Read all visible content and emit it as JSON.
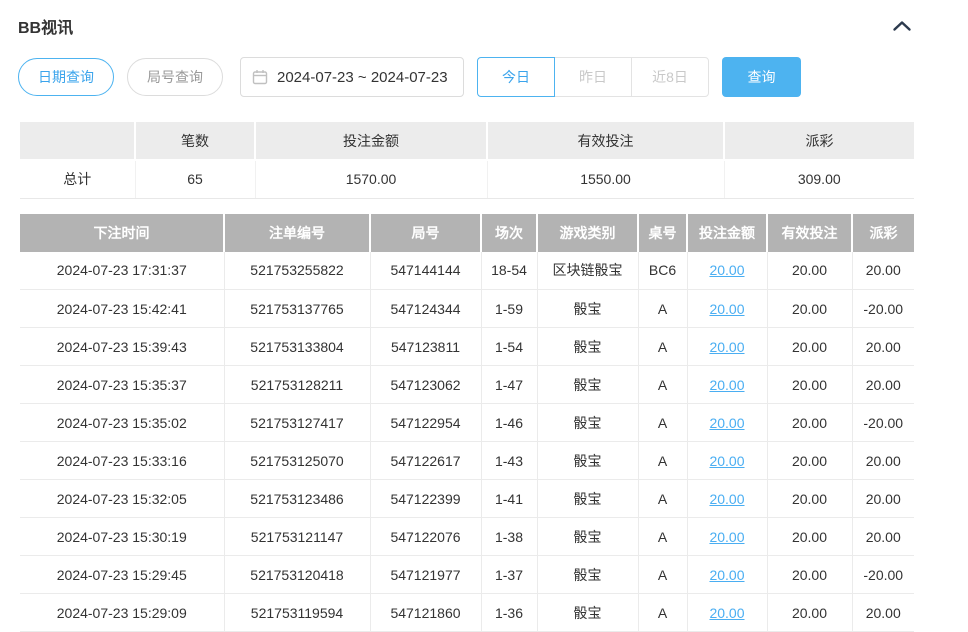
{
  "panel": {
    "title": "BB视讯",
    "collapse_icon": "chevron-up-icon"
  },
  "toolbar": {
    "date_query_label": "日期查询",
    "round_query_label": "局号查询",
    "calendar_icon": "calendar-icon",
    "date_range": "2024-07-23 ~ 2024-07-23",
    "today_label": "今日",
    "yesterday_label": "昨日",
    "last8_label": "近8日",
    "search_label": "查询"
  },
  "summary": {
    "headers": [
      "",
      "笔数",
      "投注金额",
      "有效投注",
      "派彩"
    ],
    "row_label": "总计",
    "count": "65",
    "bet_amount": "1570.00",
    "valid_bet": "1550.00",
    "payout": "309.00"
  },
  "table": {
    "headers": [
      "下注时间",
      "注单编号",
      "局号",
      "场次",
      "游戏类别",
      "桌号",
      "投注金额",
      "有效投注",
      "派彩"
    ],
    "header_keys": [
      "bet-time",
      "bet-id",
      "round-id",
      "session",
      "game-type",
      "table-id",
      "bet-amount",
      "valid-bet",
      "payout"
    ],
    "rows": [
      [
        "2024-07-23 17:31:37",
        "521753255822",
        "547144144",
        "18-54",
        "区块链骰宝",
        "BC6",
        "20.00",
        "20.00",
        "20.00"
      ],
      [
        "2024-07-23 15:42:41",
        "521753137765",
        "547124344",
        "1-59",
        "骰宝",
        "A",
        "20.00",
        "20.00",
        "-20.00"
      ],
      [
        "2024-07-23 15:39:43",
        "521753133804",
        "547123811",
        "1-54",
        "骰宝",
        "A",
        "20.00",
        "20.00",
        "20.00"
      ],
      [
        "2024-07-23 15:35:37",
        "521753128211",
        "547123062",
        "1-47",
        "骰宝",
        "A",
        "20.00",
        "20.00",
        "20.00"
      ],
      [
        "2024-07-23 15:35:02",
        "521753127417",
        "547122954",
        "1-46",
        "骰宝",
        "A",
        "20.00",
        "20.00",
        "-20.00"
      ],
      [
        "2024-07-23 15:33:16",
        "521753125070",
        "547122617",
        "1-43",
        "骰宝",
        "A",
        "20.00",
        "20.00",
        "20.00"
      ],
      [
        "2024-07-23 15:32:05",
        "521753123486",
        "547122399",
        "1-41",
        "骰宝",
        "A",
        "20.00",
        "20.00",
        "20.00"
      ],
      [
        "2024-07-23 15:30:19",
        "521753121147",
        "547122076",
        "1-38",
        "骰宝",
        "A",
        "20.00",
        "20.00",
        "20.00"
      ],
      [
        "2024-07-23 15:29:45",
        "521753120418",
        "547121977",
        "1-37",
        "骰宝",
        "A",
        "20.00",
        "20.00",
        "-20.00"
      ],
      [
        "2024-07-23 15:29:09",
        "521753119594",
        "547121860",
        "1-36",
        "骰宝",
        "A",
        "20.00",
        "20.00",
        "20.00"
      ]
    ]
  },
  "colors": {
    "accent": "#4db3f0",
    "link": "#4aaef2",
    "negative": "#f2595f",
    "table_header_bg": "#b3b3b3",
    "summary_header_bg": "#ececec"
  }
}
